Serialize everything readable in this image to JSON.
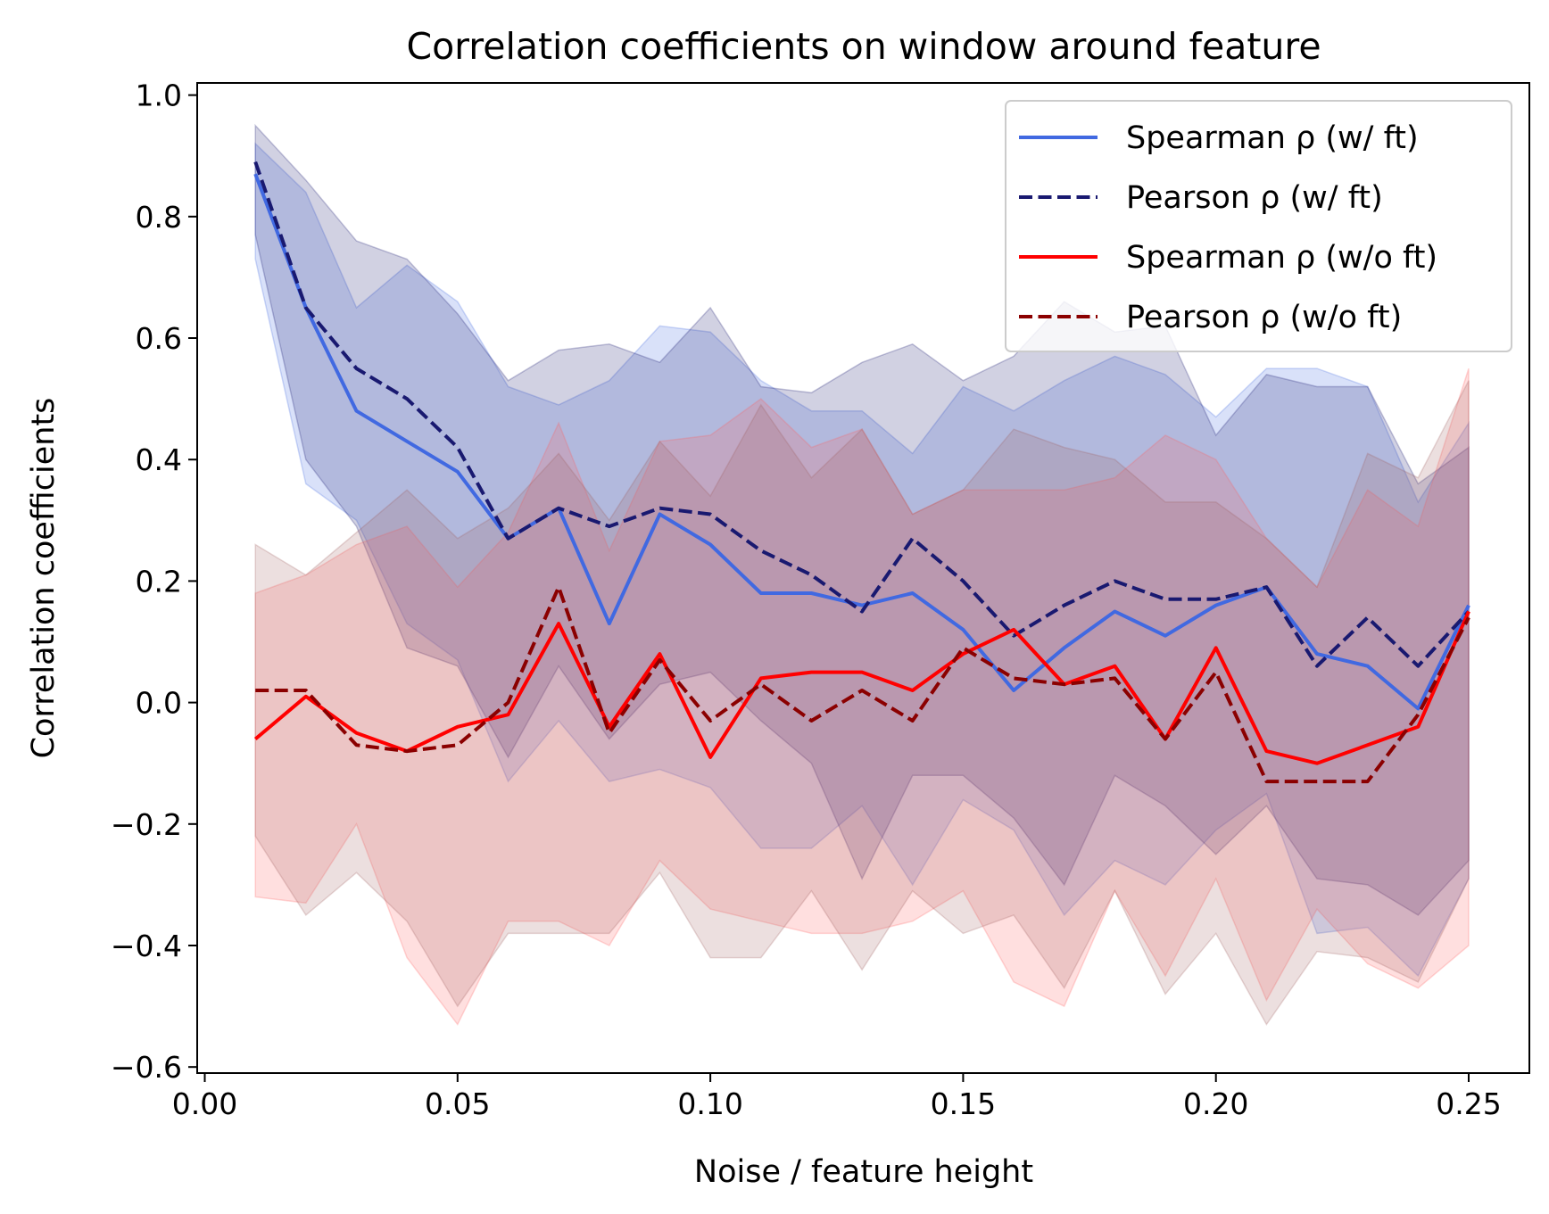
{
  "chart_data": {
    "type": "line",
    "title": "Correlation coefficients on window around feature",
    "xlabel": "Noise / feature height",
    "ylabel": "Correlation coefficients",
    "xlim": [
      -0.0015,
      0.262
    ],
    "ylim": [
      -0.61,
      1.02
    ],
    "xticks": [
      0.0,
      0.05,
      0.1,
      0.15,
      0.2,
      0.25
    ],
    "xtick_labels": [
      "0.00",
      "0.05",
      "0.10",
      "0.15",
      "0.20",
      "0.25"
    ],
    "yticks": [
      -0.6,
      -0.4,
      -0.2,
      0.0,
      0.2,
      0.4,
      0.6,
      0.8,
      1.0
    ],
    "ytick_labels": [
      "−0.6",
      "−0.4",
      "−0.2",
      "0.0",
      "0.2",
      "0.4",
      "0.6",
      "0.8",
      "1.0"
    ],
    "grid": false,
    "legend_position": "top-right",
    "x": [
      0.01,
      0.02,
      0.03,
      0.04,
      0.05,
      0.06,
      0.07,
      0.08,
      0.09,
      0.1,
      0.11,
      0.12,
      0.13,
      0.14,
      0.15,
      0.16,
      0.17,
      0.18,
      0.19,
      0.2,
      0.21,
      0.22,
      0.23,
      0.24,
      0.25
    ],
    "series": [
      {
        "name": "Spearman ρ (w/ ft)",
        "color": "#4169e1",
        "dash": "solid",
        "band_color": "#4169e1",
        "values": [
          0.87,
          0.65,
          0.48,
          0.43,
          0.38,
          0.27,
          0.32,
          0.13,
          0.31,
          0.26,
          0.18,
          0.18,
          0.16,
          0.18,
          0.12,
          0.02,
          0.09,
          0.15,
          0.11,
          0.16,
          0.19,
          0.08,
          0.06,
          -0.01,
          0.16
        ],
        "upper": [
          0.92,
          0.84,
          0.65,
          0.72,
          0.66,
          0.52,
          0.49,
          0.53,
          0.62,
          0.61,
          0.53,
          0.48,
          0.48,
          0.41,
          0.52,
          0.48,
          0.53,
          0.57,
          0.54,
          0.47,
          0.55,
          0.55,
          0.52,
          0.33,
          0.46
        ],
        "lower": [
          0.73,
          0.36,
          0.3,
          0.13,
          0.07,
          -0.13,
          -0.03,
          -0.13,
          -0.11,
          -0.14,
          -0.24,
          -0.24,
          -0.17,
          -0.3,
          -0.16,
          -0.21,
          -0.35,
          -0.26,
          -0.3,
          -0.21,
          -0.15,
          -0.38,
          -0.37,
          -0.45,
          -0.29
        ]
      },
      {
        "name": "Pearson ρ (w/ ft)",
        "color": "#191970",
        "dash": "dashed",
        "band_color": "#191970",
        "values": [
          0.89,
          0.65,
          0.55,
          0.5,
          0.42,
          0.27,
          0.32,
          0.29,
          0.32,
          0.31,
          0.25,
          0.21,
          0.15,
          0.27,
          0.2,
          0.11,
          0.16,
          0.2,
          0.17,
          0.17,
          0.19,
          0.06,
          0.14,
          0.06,
          0.15
        ],
        "upper": [
          0.95,
          0.86,
          0.76,
          0.73,
          0.64,
          0.53,
          0.58,
          0.59,
          0.56,
          0.65,
          0.52,
          0.51,
          0.56,
          0.59,
          0.53,
          0.57,
          0.66,
          0.61,
          0.62,
          0.44,
          0.54,
          0.52,
          0.52,
          0.36,
          0.42
        ],
        "lower": [
          0.77,
          0.4,
          0.29,
          0.09,
          0.06,
          -0.09,
          0.06,
          -0.06,
          0.03,
          0.05,
          -0.03,
          -0.1,
          -0.29,
          -0.12,
          -0.12,
          -0.19,
          -0.3,
          -0.12,
          -0.17,
          -0.25,
          -0.17,
          -0.29,
          -0.3,
          -0.35,
          -0.26
        ]
      },
      {
        "name": "Spearman ρ (w/o ft)",
        "color": "#ff0000",
        "dash": "solid",
        "band_color": "#ff6060",
        "values": [
          -0.06,
          0.01,
          -0.05,
          -0.08,
          -0.04,
          -0.02,
          0.13,
          -0.04,
          0.08,
          -0.09,
          0.04,
          0.05,
          0.05,
          0.02,
          0.08,
          0.12,
          0.03,
          0.06,
          -0.06,
          0.09,
          -0.08,
          -0.1,
          -0.07,
          -0.04,
          0.15
        ],
        "upper": [
          0.18,
          0.21,
          0.26,
          0.29,
          0.19,
          0.28,
          0.46,
          0.25,
          0.43,
          0.44,
          0.5,
          0.42,
          0.45,
          0.31,
          0.35,
          0.35,
          0.35,
          0.37,
          0.44,
          0.4,
          0.27,
          0.19,
          0.35,
          0.29,
          0.55
        ],
        "lower": [
          -0.32,
          -0.33,
          -0.2,
          -0.42,
          -0.53,
          -0.36,
          -0.36,
          -0.4,
          -0.26,
          -0.34,
          -0.36,
          -0.38,
          -0.38,
          -0.36,
          -0.31,
          -0.46,
          -0.5,
          -0.31,
          -0.45,
          -0.29,
          -0.49,
          -0.34,
          -0.43,
          -0.47,
          -0.4
        ]
      },
      {
        "name": "Pearson ρ (w/o ft)",
        "color": "#8b0000",
        "dash": "dashed",
        "band_color": "#a06060",
        "values": [
          0.02,
          0.02,
          -0.07,
          -0.08,
          -0.07,
          0.0,
          0.19,
          -0.05,
          0.07,
          -0.03,
          0.03,
          -0.03,
          0.02,
          -0.03,
          0.09,
          0.04,
          0.03,
          0.04,
          -0.06,
          0.05,
          -0.13,
          -0.13,
          -0.13,
          -0.02,
          0.14
        ],
        "upper": [
          0.26,
          0.21,
          0.28,
          0.35,
          0.27,
          0.32,
          0.41,
          0.3,
          0.43,
          0.34,
          0.49,
          0.37,
          0.45,
          0.31,
          0.35,
          0.45,
          0.42,
          0.4,
          0.33,
          0.33,
          0.27,
          0.19,
          0.41,
          0.37,
          0.53
        ],
        "lower": [
          -0.22,
          -0.35,
          -0.28,
          -0.36,
          -0.5,
          -0.38,
          -0.38,
          -0.38,
          -0.28,
          -0.42,
          -0.42,
          -0.31,
          -0.44,
          -0.31,
          -0.38,
          -0.35,
          -0.47,
          -0.31,
          -0.48,
          -0.38,
          -0.53,
          -0.41,
          -0.42,
          -0.46,
          -0.29
        ]
      }
    ]
  }
}
